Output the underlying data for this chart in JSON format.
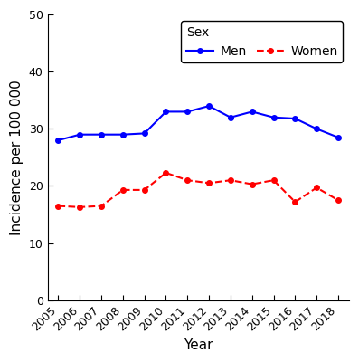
{
  "years": [
    2005,
    2006,
    2007,
    2008,
    2009,
    2010,
    2011,
    2012,
    2013,
    2014,
    2015,
    2016,
    2017,
    2018
  ],
  "men": [
    28.0,
    29.0,
    29.0,
    29.0,
    29.2,
    33.0,
    33.0,
    34.0,
    32.0,
    33.0,
    32.0,
    31.8,
    30.0,
    28.5
  ],
  "women": [
    16.5,
    16.3,
    16.5,
    19.3,
    19.3,
    22.3,
    21.0,
    20.5,
    21.0,
    20.3,
    21.0,
    17.2,
    19.7,
    17.5
  ],
  "men_color": "#0000FF",
  "women_color": "#FF0000",
  "men_label": "Men",
  "women_label": "Women",
  "legend_title": "Sex",
  "xlabel": "Year",
  "ylabel": "Incidence per 100 000",
  "ylim": [
    0,
    50
  ],
  "yticks": [
    0,
    10,
    20,
    30,
    40,
    50
  ],
  "bg_color": "#FFFFFF",
  "plot_bg_color": "#FFFFFF",
  "axis_fontsize": 11,
  "tick_fontsize": 9,
  "legend_fontsize": 10
}
